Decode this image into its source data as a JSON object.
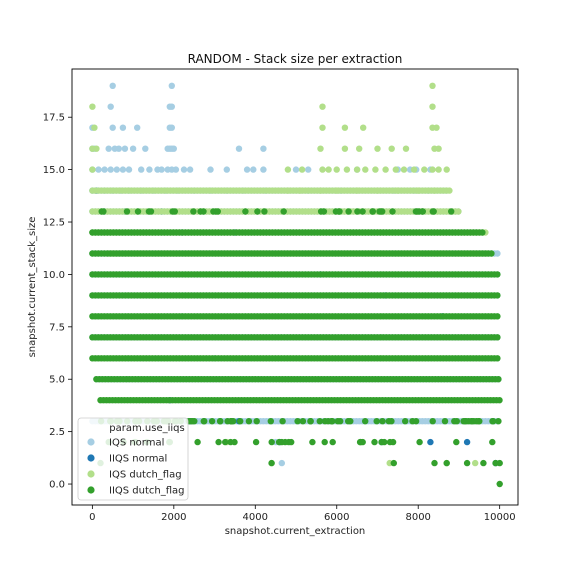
{
  "chart_data": {
    "type": "scatter",
    "title": "RANDOM - Stack size per extraction",
    "xlabel": "snapshot.current_extraction",
    "ylabel": "snapshot.current_stack_size",
    "xlim": [
      -500,
      10450
    ],
    "ylim": [
      -1,
      19.8
    ],
    "x_ticks": [
      0,
      2000,
      4000,
      6000,
      8000,
      10000
    ],
    "x_tick_labels": [
      "0",
      "2000",
      "4000",
      "6000",
      "8000",
      "10000"
    ],
    "y_ticks": [
      0,
      2.5,
      5,
      7.5,
      10,
      12.5,
      15,
      17.5
    ],
    "y_tick_labels": [
      "0.0",
      "2.5",
      "5.0",
      "7.5",
      "10.0",
      "12.5",
      "15.0",
      "17.5"
    ],
    "grid": false,
    "legend": {
      "title": "param.use_iiqs",
      "placement": "lower-left",
      "entries": [
        "IQS normal",
        "IIQS normal",
        "IQS dutch_flag",
        "IIQS dutch_flag"
      ]
    },
    "series": [
      {
        "name": "IQS normal",
        "color": "#a6cee3",
        "dense_levels": [
          [
            3,
            0,
            10000
          ],
          [
            5,
            100,
            10000
          ],
          [
            7,
            0,
            10000
          ],
          [
            9,
            0,
            10000
          ],
          [
            10,
            0,
            10000
          ],
          [
            11,
            0,
            10000
          ],
          [
            12,
            0,
            9500
          ],
          [
            13,
            0,
            9000
          ],
          [
            14,
            0,
            8700
          ]
        ],
        "points": [
          [
            500,
            19
          ],
          [
            1950,
            19
          ],
          [
            450,
            18
          ],
          [
            1950,
            18
          ],
          [
            1900,
            18
          ],
          [
            0,
            17
          ],
          [
            500,
            17
          ],
          [
            750,
            17
          ],
          [
            1100,
            17
          ],
          [
            1900,
            17
          ],
          [
            1950,
            17
          ],
          [
            0,
            16
          ],
          [
            50,
            16
          ],
          [
            400,
            16
          ],
          [
            550,
            16
          ],
          [
            650,
            16
          ],
          [
            800,
            16
          ],
          [
            1000,
            16
          ],
          [
            1300,
            16
          ],
          [
            1850,
            16
          ],
          [
            1900,
            16
          ],
          [
            1950,
            16
          ],
          [
            2000,
            16
          ],
          [
            3600,
            16
          ],
          [
            4200,
            16
          ],
          [
            0,
            15
          ],
          [
            150,
            15
          ],
          [
            300,
            15
          ],
          [
            450,
            15
          ],
          [
            600,
            15
          ],
          [
            750,
            15
          ],
          [
            900,
            15
          ],
          [
            1200,
            15
          ],
          [
            1400,
            15
          ],
          [
            1600,
            15
          ],
          [
            1700,
            15
          ],
          [
            1850,
            15
          ],
          [
            1950,
            15
          ],
          [
            2050,
            15
          ],
          [
            2250,
            15
          ],
          [
            2400,
            15
          ],
          [
            2900,
            15
          ],
          [
            3300,
            15
          ],
          [
            3800,
            15
          ],
          [
            3950,
            15
          ],
          [
            4200,
            15
          ],
          [
            5000,
            15
          ],
          [
            5300,
            15
          ],
          [
            6500,
            15
          ],
          [
            7500,
            15
          ],
          [
            7800,
            15
          ],
          [
            7950,
            15
          ],
          [
            8300,
            15
          ],
          [
            0,
            14
          ],
          [
            300,
            14
          ],
          [
            500,
            14
          ],
          [
            700,
            14
          ],
          [
            900,
            14
          ],
          [
            1200,
            14
          ],
          [
            1500,
            14
          ],
          [
            1800,
            14
          ],
          [
            2100,
            14
          ],
          [
            2500,
            14
          ],
          [
            2900,
            14
          ],
          [
            3300,
            14
          ],
          [
            3700,
            14
          ],
          [
            4250,
            14
          ],
          [
            5300,
            14
          ],
          [
            6100,
            14
          ],
          [
            7400,
            14
          ],
          [
            7900,
            14
          ],
          [
            8250,
            14
          ],
          [
            2200,
            8
          ],
          [
            3000,
            6
          ],
          [
            3300,
            3
          ],
          [
            4500,
            2
          ],
          [
            4650,
            1
          ]
        ]
      },
      {
        "name": "IIQS normal",
        "color": "#1f78b4",
        "points": [
          [
            100,
            14
          ],
          [
            300,
            13
          ],
          [
            800,
            13
          ],
          [
            1700,
            13
          ],
          [
            2200,
            12
          ],
          [
            3500,
            12
          ],
          [
            5600,
            10
          ],
          [
            7200,
            9
          ],
          [
            8600,
            8
          ],
          [
            1900,
            4
          ],
          [
            2400,
            3
          ],
          [
            3600,
            3
          ],
          [
            4600,
            2
          ],
          [
            7100,
            2
          ],
          [
            8300,
            2
          ],
          [
            9200,
            2
          ],
          [
            9900,
            1
          ]
        ]
      },
      {
        "name": "IQS dutch_flag",
        "color": "#b2df8a",
        "dense_levels": [
          [
            11,
            400,
            9700
          ],
          [
            12,
            0,
            9700
          ],
          [
            13,
            0,
            9000
          ],
          [
            14,
            0,
            8800
          ]
        ],
        "points": [
          [
            8350,
            19
          ],
          [
            5650,
            18
          ],
          [
            8350,
            18
          ],
          [
            0,
            18
          ],
          [
            50,
            17
          ],
          [
            5650,
            17
          ],
          [
            6200,
            17
          ],
          [
            6650,
            17
          ],
          [
            8350,
            17
          ],
          [
            8450,
            17
          ],
          [
            0,
            16
          ],
          [
            100,
            16
          ],
          [
            5600,
            16
          ],
          [
            6200,
            16
          ],
          [
            6550,
            16
          ],
          [
            7000,
            16
          ],
          [
            7350,
            16
          ],
          [
            7700,
            16
          ],
          [
            8400,
            16
          ],
          [
            8500,
            16
          ],
          [
            0,
            15
          ],
          [
            4800,
            15
          ],
          [
            5150,
            15
          ],
          [
            5650,
            15
          ],
          [
            5800,
            15
          ],
          [
            6000,
            15
          ],
          [
            6250,
            15
          ],
          [
            6500,
            15
          ],
          [
            6700,
            15
          ],
          [
            6950,
            15
          ],
          [
            7200,
            15
          ],
          [
            7450,
            15
          ],
          [
            7650,
            15
          ],
          [
            7900,
            15
          ],
          [
            8150,
            15
          ],
          [
            8350,
            15
          ],
          [
            8500,
            15
          ],
          [
            8700,
            15
          ],
          [
            4800,
            14
          ],
          [
            5100,
            14
          ],
          [
            5600,
            14
          ],
          [
            6000,
            14
          ],
          [
            6500,
            14
          ],
          [
            7000,
            14
          ],
          [
            7500,
            14
          ],
          [
            8000,
            14
          ],
          [
            8400,
            14
          ],
          [
            2000,
            3
          ],
          [
            3300,
            2
          ],
          [
            4400,
            1
          ],
          [
            7300,
            1
          ],
          [
            8700,
            1
          ],
          [
            9400,
            1
          ]
        ]
      },
      {
        "name": "IIQS dutch_flag",
        "color": "#33a02c",
        "dense_levels": [
          [
            4,
            200,
            10000
          ],
          [
            5,
            100,
            10000
          ],
          [
            6,
            0,
            10000
          ],
          [
            7,
            0,
            10000
          ],
          [
            8,
            0,
            10000
          ],
          [
            9,
            0,
            10000
          ],
          [
            10,
            0,
            10000
          ],
          [
            11,
            0,
            9800
          ],
          [
            12,
            0,
            9600
          ]
        ],
        "sparse_levels": [
          [
            3,
            100,
            10000,
            80
          ],
          [
            2,
            600,
            10000,
            28
          ],
          [
            13,
            0,
            9000,
            40
          ]
        ],
        "points": [
          [
            200,
            1
          ],
          [
            4400,
            1
          ],
          [
            7400,
            1
          ],
          [
            8400,
            1
          ],
          [
            8700,
            1
          ],
          [
            9200,
            1
          ],
          [
            9600,
            1
          ],
          [
            9900,
            1
          ],
          [
            10000,
            1
          ],
          [
            10000,
            0
          ],
          [
            400,
            2
          ],
          [
            1900,
            2
          ],
          [
            3100,
            2
          ],
          [
            4650,
            2
          ],
          [
            5900,
            2
          ]
        ]
      }
    ]
  }
}
